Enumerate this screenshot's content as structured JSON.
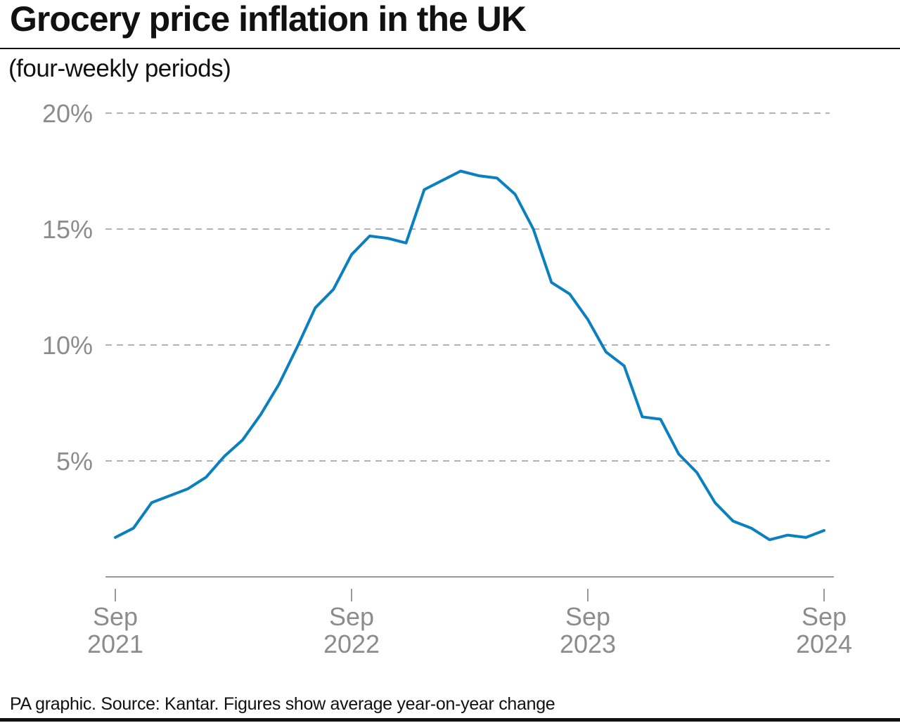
{
  "title": "Grocery price inflation in the UK",
  "subtitle": "(four-weekly periods)",
  "footer": "PA graphic. Source: Kantar. Figures show average year-on-year change",
  "chart_data": {
    "type": "line",
    "title": "Grocery price inflation in the UK",
    "subtitle": "(four-weekly periods)",
    "xlabel": "",
    "ylabel": "",
    "ylim": [
      0,
      20
    ],
    "yticks": [
      5,
      10,
      15,
      20
    ],
    "ytick_labels": [
      "5%",
      "10%",
      "15%",
      "20%"
    ],
    "xticks": [
      {
        "line1": "Sep",
        "line2": "2021",
        "period": 0
      },
      {
        "line1": "Sep",
        "line2": "2022",
        "period": 13
      },
      {
        "line1": "Sep",
        "line2": "2023",
        "period": 26
      },
      {
        "line1": "Sep",
        "line2": "2024",
        "period": 39
      }
    ],
    "grid": "horizontal dashed",
    "line_color": "#0a80c0",
    "series": [
      {
        "values": [
          1.7,
          2.1,
          3.2,
          3.5,
          3.8,
          4.3,
          5.2,
          5.9,
          7.0,
          8.3,
          9.9,
          11.6,
          12.4,
          13.9,
          14.7,
          14.6,
          14.4,
          16.7,
          17.1,
          17.5,
          17.3,
          17.2,
          16.5,
          15.0,
          12.7,
          12.2,
          11.1,
          9.7,
          9.1,
          6.9,
          6.8,
          5.3,
          4.5,
          3.2,
          2.4,
          2.1,
          1.6,
          1.8,
          1.7,
          2.0
        ]
      }
    ]
  }
}
